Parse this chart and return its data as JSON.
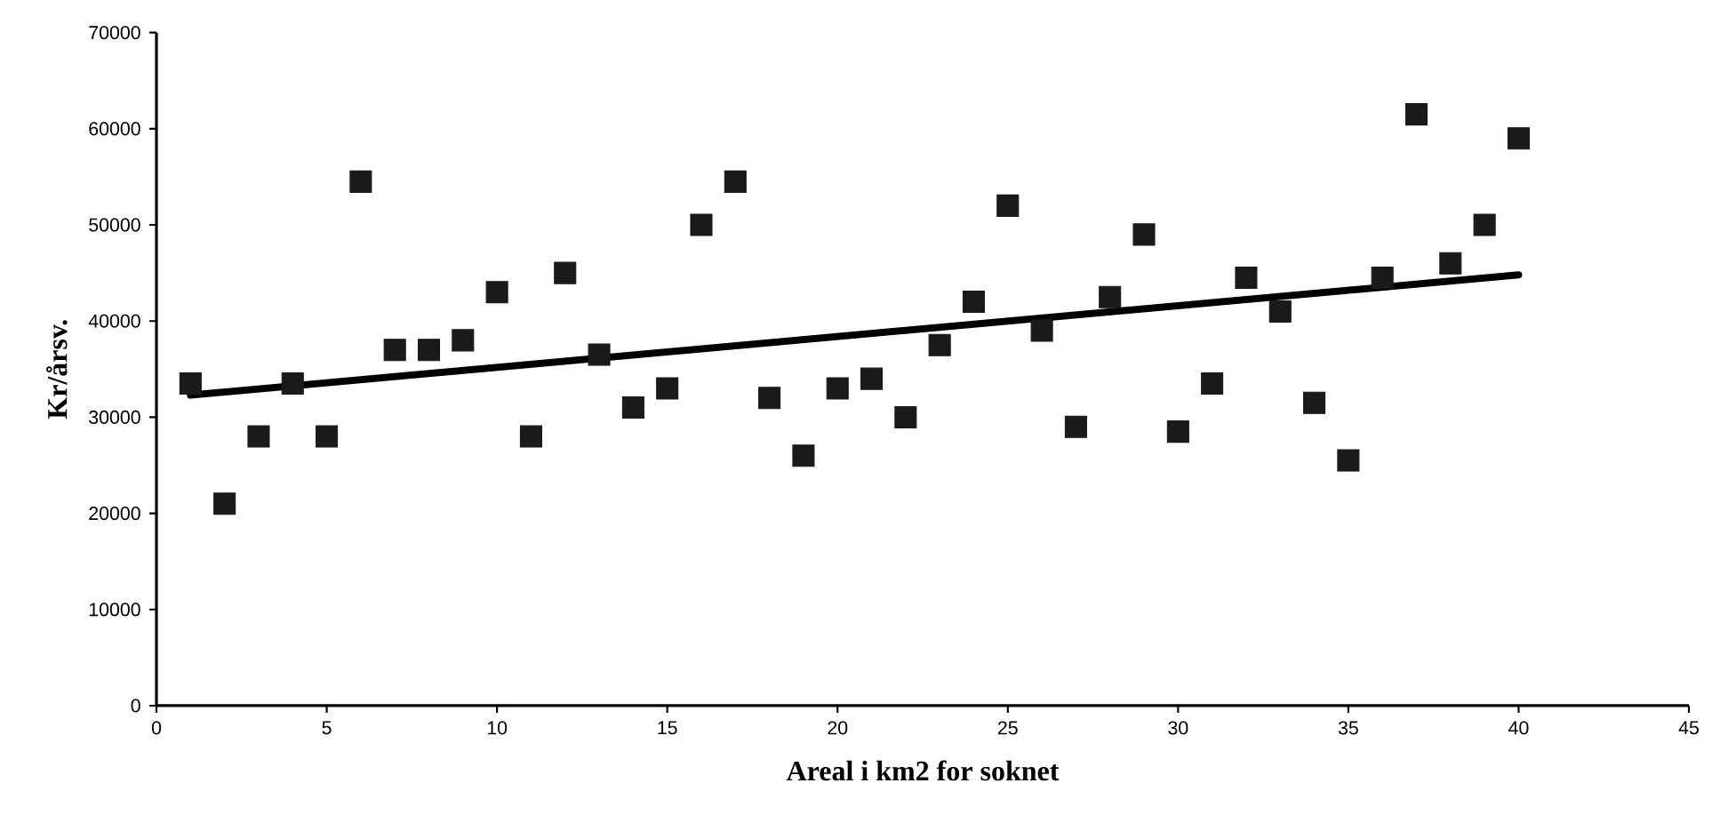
{
  "chart_data": {
    "type": "scatter",
    "xlabel": "Areal i km2 for soknet",
    "ylabel": "Kr/årsv.",
    "xlim": [
      0,
      45
    ],
    "xticks": [
      0,
      5,
      10,
      15,
      20,
      25,
      30,
      35,
      40,
      45
    ],
    "ylim": [
      0,
      70000
    ],
    "yticks": [
      0,
      10000,
      20000,
      30000,
      40000,
      50000,
      60000,
      70000
    ],
    "grid": false,
    "series": [
      {
        "marker": "square",
        "color": "#1a1a1a",
        "x": [
          1,
          2,
          3,
          4,
          5,
          6,
          7,
          8,
          9,
          10,
          11,
          12,
          13,
          14,
          15,
          16,
          17,
          18,
          19,
          20,
          21,
          22,
          23,
          24,
          25,
          26,
          27,
          28,
          29,
          30,
          31,
          32,
          33,
          34,
          35,
          36,
          37,
          38,
          39,
          40
        ],
        "values": [
          33500,
          21000,
          28000,
          33500,
          28000,
          54500,
          37000,
          37000,
          38000,
          43000,
          28000,
          45000,
          36500,
          31000,
          33000,
          50000,
          54500,
          32000,
          26000,
          33000,
          34000,
          30000,
          37500,
          42000,
          52000,
          39000,
          29000,
          42500,
          49000,
          28500,
          33500,
          44500,
          41000,
          31500,
          25500,
          44500,
          61500,
          46000,
          50000,
          59000
        ]
      },
      {
        "type": "line",
        "marker": "none",
        "color": "#000000",
        "x": [
          1,
          40
        ],
        "values": [
          32300,
          44800
        ]
      }
    ]
  }
}
